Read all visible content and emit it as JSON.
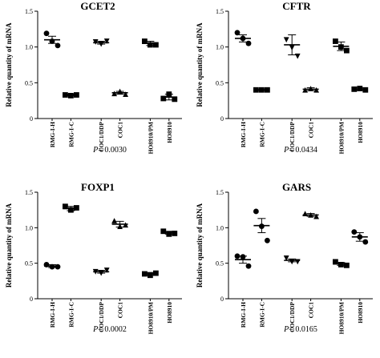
{
  "chart_data": [
    {
      "type": "scatter",
      "title": "GCET2",
      "ylabel": "Relative quantity of mRNA",
      "ylim": [
        0,
        1.5
      ],
      "yticks": [
        "0",
        "0.5",
        "1.0",
        "1.5"
      ],
      "categories": [
        "RMG-I-H",
        "RMG-I-C",
        "COC1/DDP",
        "COC1",
        "HO8910/PM",
        "HO8910"
      ],
      "markers": [
        "circle",
        "square",
        "triangle-down",
        "triangle-up",
        "square",
        "square"
      ],
      "points": [
        [
          1.19,
          1.08,
          1.02
        ],
        [
          0.33,
          0.32,
          0.33
        ],
        [
          1.07,
          1.04,
          1.08
        ],
        [
          0.35,
          0.38,
          0.34
        ],
        [
          1.08,
          1.03,
          1.03
        ],
        [
          0.28,
          0.34,
          0.27
        ]
      ],
      "mean": [
        1.1,
        0.33,
        1.06,
        0.36,
        1.05,
        0.3
      ],
      "sem": [
        0.05,
        0.01,
        0.02,
        0.02,
        0.03,
        0.04
      ],
      "pvalue_label": "P",
      "pvalue": "= 0.0030"
    },
    {
      "type": "scatter",
      "title": "CFTR",
      "ylabel": "Relative quantity of mRNA",
      "ylim": [
        0,
        1.5
      ],
      "yticks": [
        "0",
        "0.5",
        "1.0",
        "1.5"
      ],
      "categories": [
        "RMG-I-H",
        "RMG-I-C",
        "COC1/DDP",
        "COC1",
        "HO8910/PM",
        "HO8910"
      ],
      "markers": [
        "circle",
        "square",
        "triangle-down",
        "triangle-up",
        "square",
        "square"
      ],
      "points": [
        [
          1.2,
          1.12,
          1.05
        ],
        [
          0.4,
          0.4,
          0.4
        ],
        [
          1.1,
          0.99,
          0.87
        ],
        [
          0.4,
          0.42,
          0.4
        ],
        [
          1.08,
          1.0,
          0.95
        ],
        [
          0.41,
          0.42,
          0.4
        ]
      ],
      "mean": [
        1.12,
        0.4,
        1.03,
        0.41,
        1.01,
        0.41
      ],
      "sem": [
        0.05,
        0.005,
        0.14,
        0.02,
        0.06,
        0.02
      ],
      "pvalue_label": "P",
      "pvalue": "= 0.0434"
    },
    {
      "type": "scatter",
      "title": "FOXP1",
      "ylabel": "Relative quantity of mRNA",
      "ylim": [
        0,
        1.5
      ],
      "yticks": [
        "0",
        "0.5",
        "1.0",
        "1.5"
      ],
      "categories": [
        "RMG-I-H",
        "RMG-I-C",
        "COC1/DDP",
        "COC1",
        "HO8910/PM",
        "HO8910"
      ],
      "markers": [
        "circle",
        "square",
        "triangle-down",
        "triangle-up",
        "square",
        "square"
      ],
      "points": [
        [
          0.48,
          0.45,
          0.45
        ],
        [
          1.3,
          1.25,
          1.28
        ],
        [
          0.38,
          0.36,
          0.4
        ],
        [
          1.1,
          1.02,
          1.04
        ],
        [
          0.35,
          0.33,
          0.36
        ],
        [
          0.95,
          0.91,
          0.92
        ]
      ],
      "mean": [
        0.46,
        1.27,
        0.38,
        1.05,
        0.35,
        0.93
      ],
      "sem": [
        0.02,
        0.03,
        0.02,
        0.04,
        0.02,
        0.02
      ],
      "pvalue_label": "P",
      "pvalue": "= 0.0002"
    },
    {
      "type": "scatter",
      "title": "GARS",
      "ylabel": "Relative quantity of mRNA",
      "ylim": [
        0,
        1.5
      ],
      "yticks": [
        "0",
        "0.5",
        "1.0",
        "1.5"
      ],
      "categories": [
        "RMG-I-H",
        "RMG-I-C",
        "COC1/DDP",
        "COC1",
        "HO8910/PM",
        "HO8910"
      ],
      "markers": [
        "circle",
        "circle",
        "triangle-down",
        "triangle-up",
        "square",
        "circle"
      ],
      "points": [
        [
          0.6,
          0.59,
          0.46
        ],
        [
          1.23,
          1.02,
          0.82
        ],
        [
          0.57,
          0.52,
          0.52
        ],
        [
          1.2,
          1.18,
          1.16
        ],
        [
          0.52,
          0.48,
          0.47
        ],
        [
          0.94,
          0.87,
          0.8
        ]
      ],
      "mean": [
        0.55,
        1.03,
        0.54,
        1.18,
        0.49,
        0.87
      ],
      "sem": [
        0.05,
        0.1,
        0.02,
        0.02,
        0.02,
        0.06
      ],
      "pvalue_label": "P",
      "pvalue": "= 0.0165"
    }
  ]
}
